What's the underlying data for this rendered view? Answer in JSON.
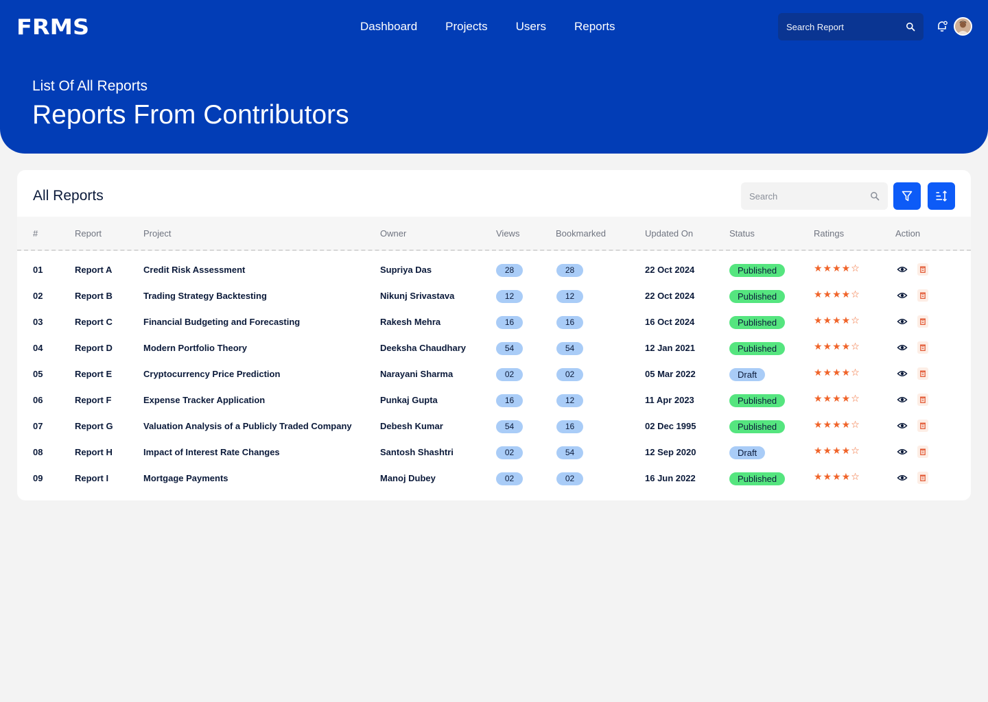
{
  "brand": "FRMS",
  "nav": [
    "Dashboard",
    "Projects",
    "Users",
    "Reports"
  ],
  "top_search": {
    "placeholder": "Search Report"
  },
  "header": {
    "subtitle": "List Of All Reports",
    "title": "Reports From Contributors"
  },
  "card": {
    "title": "All Reports",
    "search_placeholder": "Search"
  },
  "table": {
    "columns": [
      "#",
      "Report",
      "Project",
      "Owner",
      "Views",
      "Bookmarked",
      "Updated On",
      "Status",
      "Ratings",
      "Action"
    ],
    "rows": [
      {
        "num": "01",
        "report": "Report A",
        "project": "Credit Risk Assessment",
        "owner": "Supriya Das",
        "views": "28",
        "bookmarked": "28",
        "updated": "22 Oct 2024",
        "status": "Published",
        "rating": "★★★★☆"
      },
      {
        "num": "02",
        "report": "Report B",
        "project": "Trading Strategy Backtesting",
        "owner": "Nikunj Srivastava",
        "views": "12",
        "bookmarked": "12",
        "updated": "22 Oct 2024",
        "status": "Published",
        "rating": "★★★★☆"
      },
      {
        "num": "03",
        "report": "Report C",
        "project": "Financial Budgeting and Forecasting",
        "owner": "Rakesh Mehra",
        "views": "16",
        "bookmarked": "16",
        "updated": "16 Oct 2024",
        "status": "Published",
        "rating": "★★★★☆"
      },
      {
        "num": "04",
        "report": "Report D",
        "project": "Modern Portfolio Theory",
        "owner": "Deeksha Chaudhary",
        "views": "54",
        "bookmarked": "54",
        "updated": "12 Jan 2021",
        "status": "Published",
        "rating": "★★★★☆"
      },
      {
        "num": "05",
        "report": "Report E",
        "project": "Cryptocurrency Price Prediction",
        "owner": "Narayani Sharma",
        "views": "02",
        "bookmarked": "02",
        "updated": "05 Mar 2022",
        "status": "Draft",
        "rating": "★★★★☆"
      },
      {
        "num": "06",
        "report": "Report F",
        "project": "Expense Tracker Application",
        "owner": "Punkaj Gupta",
        "views": "16",
        "bookmarked": "12",
        "updated": "11 Apr 2023",
        "status": "Published",
        "rating": "★★★★☆"
      },
      {
        "num": "07",
        "report": "Report G",
        "project": "Valuation Analysis of a Publicly Traded Company",
        "owner": "Debesh Kumar",
        "views": "54",
        "bookmarked": "16",
        "updated": "02 Dec 1995",
        "status": "Published",
        "rating": "★★★★☆"
      },
      {
        "num": "08",
        "report": "Report H",
        "project": "Impact of Interest Rate Changes",
        "owner": "Santosh Shashtri",
        "views": "02",
        "bookmarked": "54",
        "updated": "12 Sep 2020",
        "status": "Draft",
        "rating": "★★★★☆"
      },
      {
        "num": "09",
        "report": "Report I",
        "project": "Mortgage Payments",
        "owner": "Manoj Dubey",
        "views": "02",
        "bookmarked": "02",
        "updated": "16 Jun 2022",
        "status": "Published",
        "rating": "★★★★☆"
      }
    ]
  },
  "icons": {
    "search": "search-icon",
    "bell": "bell-icon",
    "filter": "filter-icon",
    "sort": "sort-icon",
    "view": "eye-icon",
    "delete": "trash-icon"
  },
  "colors": {
    "primary": "#023db6",
    "accent": "#0d5bf7",
    "published": "#55e57f",
    "draft": "#a9ccf7",
    "star": "#f0642a",
    "pill": "#a9ccf7"
  }
}
